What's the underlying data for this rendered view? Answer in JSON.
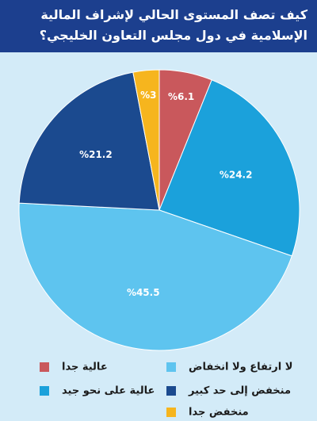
{
  "chart_data": {
    "type": "pie",
    "title": "كيف تصف المستوى الحالي لإشراف المالية الإسلامية في دول مجلس التعاون الخليجي؟",
    "categories": [
      "عالية جدا",
      "عالية على نحو جيد",
      "لا ارتفاع ولا انخفاض",
      "منخفض إلى حد كبير",
      "منخفض جدا"
    ],
    "values": [
      6.1,
      24.2,
      45.5,
      21.2,
      3
    ],
    "value_labels": [
      "%6.1",
      "%24.2",
      "%45.5",
      "%21.2",
      "%3"
    ],
    "colors": [
      "#c9585c",
      "#1ba1db",
      "#5ec4ef",
      "#1b4a8f",
      "#f6b51e"
    ]
  }
}
